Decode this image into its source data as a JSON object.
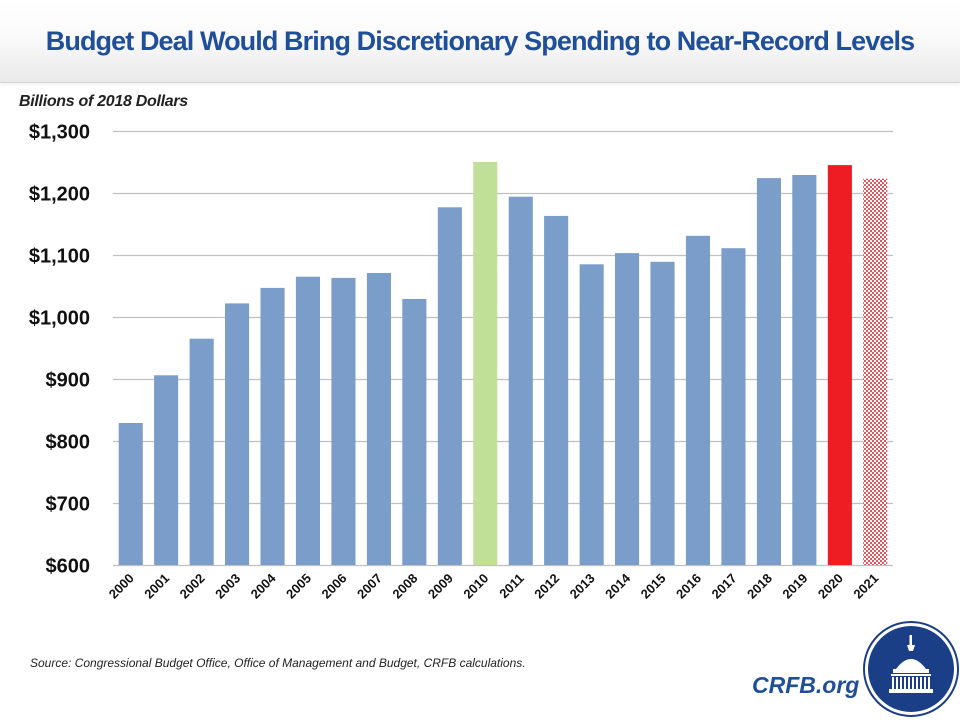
{
  "header": {
    "title": "Budget Deal Would Bring Discretionary Spending to Near-Record Levels"
  },
  "units_label": "Billions of 2018 Dollars",
  "footer": {
    "source": "Source: Congressional  Budget Office, Office of Management and  Budget, CRFB calculations.",
    "brand": "CRFB.org",
    "logo_icon": "capitol-dome-logo-icon"
  },
  "colors": {
    "title": "#1f4e9a",
    "bar_default": "#7a9dc9",
    "bar_peak": "#bfe096",
    "bar_deal": "#ee1c23",
    "bar_projected_pattern": "#e0565b",
    "grid": "#c0c0c0",
    "brand": "#1f4e9a",
    "logo_bg": "#1b3f87"
  },
  "chart_data": {
    "type": "bar",
    "title": "Budget Deal Would Bring Discretionary Spending to Near-Record Levels",
    "xlabel": "",
    "ylabel": "Billions of 2018 Dollars",
    "ylim": [
      600,
      1300
    ],
    "ytick_values": [
      600,
      700,
      800,
      900,
      1000,
      1100,
      1200,
      1300
    ],
    "ytick_labels": [
      "$600",
      "$700",
      "$800",
      "$900",
      "$1,000",
      "$1,100",
      "$1,200",
      "$1,300"
    ],
    "grid": true,
    "legend": "none",
    "categories": [
      "2000",
      "2001",
      "2002",
      "2003",
      "2004",
      "2005",
      "2006",
      "2007",
      "2008",
      "2009",
      "2010",
      "2011",
      "2012",
      "2013",
      "2014",
      "2015",
      "2016",
      "2017",
      "2018",
      "2019",
      "2020",
      "2021"
    ],
    "values": [
      829,
      906,
      965,
      1022,
      1047,
      1065,
      1063,
      1071,
      1029,
      1177,
      1250,
      1194,
      1163,
      1085,
      1103,
      1089,
      1131,
      1111,
      1224,
      1229,
      1245,
      1223
    ],
    "bar_styles": [
      "default",
      "default",
      "default",
      "default",
      "default",
      "default",
      "default",
      "default",
      "default",
      "default",
      "peak",
      "default",
      "default",
      "default",
      "default",
      "default",
      "default",
      "default",
      "default",
      "default",
      "deal",
      "projected"
    ]
  }
}
